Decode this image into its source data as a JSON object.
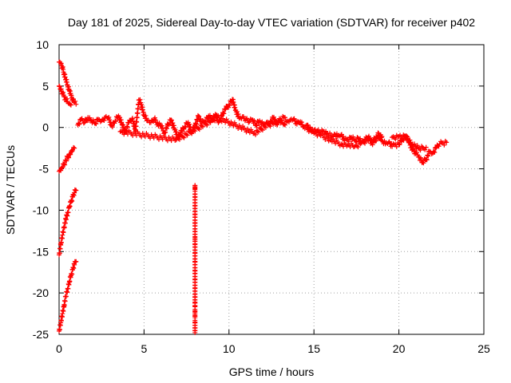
{
  "chart_data": {
    "type": "scatter",
    "title": "Day 181 of 2025, Sidereal Day-to-day VTEC variation (SDTVAR) for receiver p402",
    "xlabel": "GPS time / hours",
    "ylabel": "SDTVAR / TECUs",
    "xlim": [
      0,
      25
    ],
    "ylim": [
      -25,
      10
    ],
    "xticks": [
      0,
      5,
      10,
      15,
      20,
      25
    ],
    "yticks": [
      -25,
      -20,
      -15,
      -10,
      -5,
      0,
      5,
      10
    ],
    "grid": true,
    "marker": "+",
    "color": "#ff0000",
    "series": [
      {
        "name": "SDTVAR",
        "segments": [
          [
            [
              0.0,
              7.9
            ],
            [
              0.1,
              7.7
            ],
            [
              0.2,
              7.2
            ],
            [
              0.3,
              6.5
            ],
            [
              0.4,
              5.8
            ],
            [
              0.5,
              5.1
            ],
            [
              0.6,
              4.5
            ],
            [
              0.7,
              3.9
            ],
            [
              0.8,
              3.4
            ],
            [
              0.9,
              3.0
            ],
            [
              1.0,
              2.8
            ]
          ],
          [
            [
              0.0,
              5.0
            ],
            [
              0.1,
              4.6
            ],
            [
              0.2,
              4.1
            ],
            [
              0.3,
              3.7
            ],
            [
              0.4,
              3.4
            ],
            [
              0.5,
              3.1
            ],
            [
              0.6,
              2.9
            ],
            [
              0.7,
              2.7
            ]
          ],
          [
            [
              0.0,
              -5.3
            ],
            [
              0.1,
              -5.2
            ],
            [
              0.2,
              -4.8
            ],
            [
              0.3,
              -4.4
            ],
            [
              0.4,
              -4.0
            ],
            [
              0.5,
              -3.6
            ],
            [
              0.6,
              -3.3
            ],
            [
              0.7,
              -3.0
            ],
            [
              0.8,
              -2.7
            ],
            [
              0.9,
              -2.5
            ]
          ],
          [
            [
              0.0,
              -15.4
            ],
            [
              0.1,
              -14.2
            ],
            [
              0.2,
              -13.0
            ],
            [
              0.3,
              -12.0
            ],
            [
              0.4,
              -11.1
            ],
            [
              0.5,
              -10.3
            ],
            [
              0.6,
              -9.6
            ],
            [
              0.7,
              -9.0
            ],
            [
              0.8,
              -8.4
            ],
            [
              0.9,
              -7.9
            ],
            [
              1.0,
              -7.6
            ]
          ],
          [
            [
              0.0,
              -24.6
            ],
            [
              0.1,
              -23.6
            ],
            [
              0.2,
              -22.5
            ],
            [
              0.3,
              -21.4
            ],
            [
              0.4,
              -20.4
            ],
            [
              0.5,
              -19.5
            ],
            [
              0.6,
              -18.7
            ],
            [
              0.7,
              -17.9
            ],
            [
              0.8,
              -17.2
            ],
            [
              0.9,
              -16.6
            ],
            [
              1.0,
              -16.2
            ]
          ],
          [
            [
              1.1,
              0.3
            ],
            [
              1.3,
              1.0
            ],
            [
              1.5,
              0.6
            ],
            [
              1.7,
              1.2
            ],
            [
              1.9,
              0.8
            ],
            [
              2.1,
              0.5
            ],
            [
              2.3,
              1.0
            ],
            [
              2.5,
              0.8
            ],
            [
              2.7,
              1.2
            ],
            [
              2.9,
              1.1
            ],
            [
              3.1,
              0.2
            ],
            [
              3.3,
              0.8
            ],
            [
              3.5,
              1.4
            ],
            [
              3.7,
              0.4
            ],
            [
              3.9,
              -0.6
            ],
            [
              4.1,
              0.6
            ],
            [
              4.3,
              1.0
            ],
            [
              4.5,
              -0.3
            ],
            [
              4.7,
              3.3
            ],
            [
              4.8,
              3.0
            ],
            [
              5.0,
              1.5
            ],
            [
              5.2,
              0.8
            ],
            [
              5.4,
              0.6
            ],
            [
              5.6,
              1.0
            ],
            [
              5.8,
              0.5
            ],
            [
              6.0,
              0.2
            ],
            [
              6.2,
              -0.6
            ],
            [
              6.4,
              0.3
            ],
            [
              6.6,
              0.9
            ],
            [
              6.8,
              -0.3
            ],
            [
              7.0,
              -1.2
            ],
            [
              7.2,
              -0.4
            ],
            [
              7.4,
              0.1
            ],
            [
              7.6,
              0.6
            ],
            [
              7.8,
              -0.6
            ],
            [
              8.0,
              0.3
            ],
            [
              8.2,
              1.3
            ],
            [
              8.4,
              0.5
            ],
            [
              8.6,
              0.8
            ],
            [
              8.8,
              1.4
            ],
            [
              9.0,
              0.9
            ],
            [
              9.2,
              1.6
            ],
            [
              9.4,
              0.7
            ],
            [
              9.6,
              1.5
            ],
            [
              9.8,
              2.2
            ],
            [
              10.0,
              2.8
            ],
            [
              10.2,
              3.4
            ],
            [
              10.4,
              2.1
            ],
            [
              10.6,
              1.1
            ],
            [
              10.8,
              1.3
            ],
            [
              11.0,
              1.0
            ],
            [
              11.2,
              0.7
            ],
            [
              11.4,
              0.9
            ],
            [
              11.6,
              0.3
            ],
            [
              11.8,
              0.8
            ],
            [
              12.0,
              0.4
            ],
            [
              12.2,
              0.6
            ],
            [
              12.4,
              0.5
            ],
            [
              12.6,
              1.1
            ],
            [
              12.8,
              0.5
            ],
            [
              13.0,
              0.8
            ],
            [
              13.2,
              0.4
            ],
            [
              13.4,
              0.7
            ],
            [
              13.6,
              0.9
            ],
            [
              13.8,
              1.0
            ],
            [
              14.0,
              0.4
            ],
            [
              14.2,
              0.7
            ],
            [
              14.4,
              0.1
            ],
            [
              14.6,
              -0.1
            ],
            [
              14.8,
              -0.4
            ],
            [
              15.0,
              -0.3
            ],
            [
              15.2,
              -0.4
            ],
            [
              15.4,
              -0.6
            ],
            [
              15.6,
              -0.5
            ],
            [
              15.8,
              -0.8
            ],
            [
              16.0,
              -1.0
            ],
            [
              16.2,
              -0.8
            ],
            [
              16.4,
              -1.1
            ],
            [
              16.6,
              -0.9
            ],
            [
              16.8,
              -1.6
            ],
            [
              17.0,
              -1.5
            ],
            [
              17.2,
              -1.2
            ],
            [
              17.4,
              -1.6
            ],
            [
              17.6,
              -1.3
            ],
            [
              17.8,
              -1.8
            ],
            [
              18.0,
              -1.4
            ],
            [
              18.2,
              -1.2
            ],
            [
              18.4,
              -1.9
            ],
            [
              18.6,
              -1.6
            ],
            [
              18.8,
              -0.7
            ],
            [
              19.0,
              -1.6
            ],
            [
              19.2,
              -2.0
            ],
            [
              19.4,
              -1.8
            ],
            [
              19.6,
              -2.3
            ],
            [
              19.8,
              -2.1
            ],
            [
              20.0,
              -2.0
            ],
            [
              20.2,
              -1.5
            ],
            [
              20.4,
              -1.0
            ],
            [
              20.6,
              -1.8
            ],
            [
              20.8,
              -2.7
            ],
            [
              21.0,
              -3.2
            ],
            [
              21.2,
              -3.6
            ],
            [
              21.4,
              -4.2
            ],
            [
              21.6,
              -3.9
            ],
            [
              21.8,
              -2.9
            ],
            [
              22.0,
              -3.1
            ],
            [
              22.2,
              -2.4
            ],
            [
              22.4,
              -2.0
            ],
            [
              22.6,
              -1.9
            ],
            [
              22.8,
              -1.8
            ]
          ],
          [
            [
              14.6,
              0.3
            ],
            [
              15.0,
              -0.7
            ],
            [
              15.4,
              -1.0
            ],
            [
              15.8,
              -1.3
            ],
            [
              16.2,
              -1.7
            ],
            [
              16.6,
              -2.0
            ],
            [
              17.0,
              -2.1
            ],
            [
              17.4,
              -2.3
            ],
            [
              17.8,
              -1.9
            ],
            [
              18.2,
              -1.6
            ],
            [
              18.6,
              -1.4
            ],
            [
              19.0,
              -1.1
            ]
          ],
          [
            [
              19.6,
              -1.2
            ],
            [
              20.0,
              -1.1
            ],
            [
              20.4,
              -1.2
            ],
            [
              20.8,
              -2.0
            ],
            [
              21.2,
              -2.6
            ],
            [
              21.6,
              -2.4
            ]
          ],
          [
            [
              8.0,
              -7.0
            ],
            [
              8.0,
              -7.3
            ],
            [
              8.0,
              -7.5
            ],
            [
              8.0,
              -12.9
            ],
            [
              8.0,
              -13.2
            ],
            [
              8.0,
              -13.5
            ],
            [
              8.0,
              -21.1
            ],
            [
              8.0,
              -21.6
            ],
            [
              8.0,
              -22.2
            ],
            [
              8.0,
              -22.8
            ],
            [
              8.0,
              -23.5
            ],
            [
              8.0,
              -24.2
            ],
            [
              8.0,
              -24.8
            ]
          ],
          [
            [
              3.6,
              -0.5
            ],
            [
              6.9,
              -1.5
            ],
            [
              9.3,
              1.2
            ],
            [
              11.5,
              -0.7
            ],
            [
              12.1,
              0.1
            ],
            [
              13.3,
              1.2
            ]
          ]
        ]
      }
    ]
  }
}
